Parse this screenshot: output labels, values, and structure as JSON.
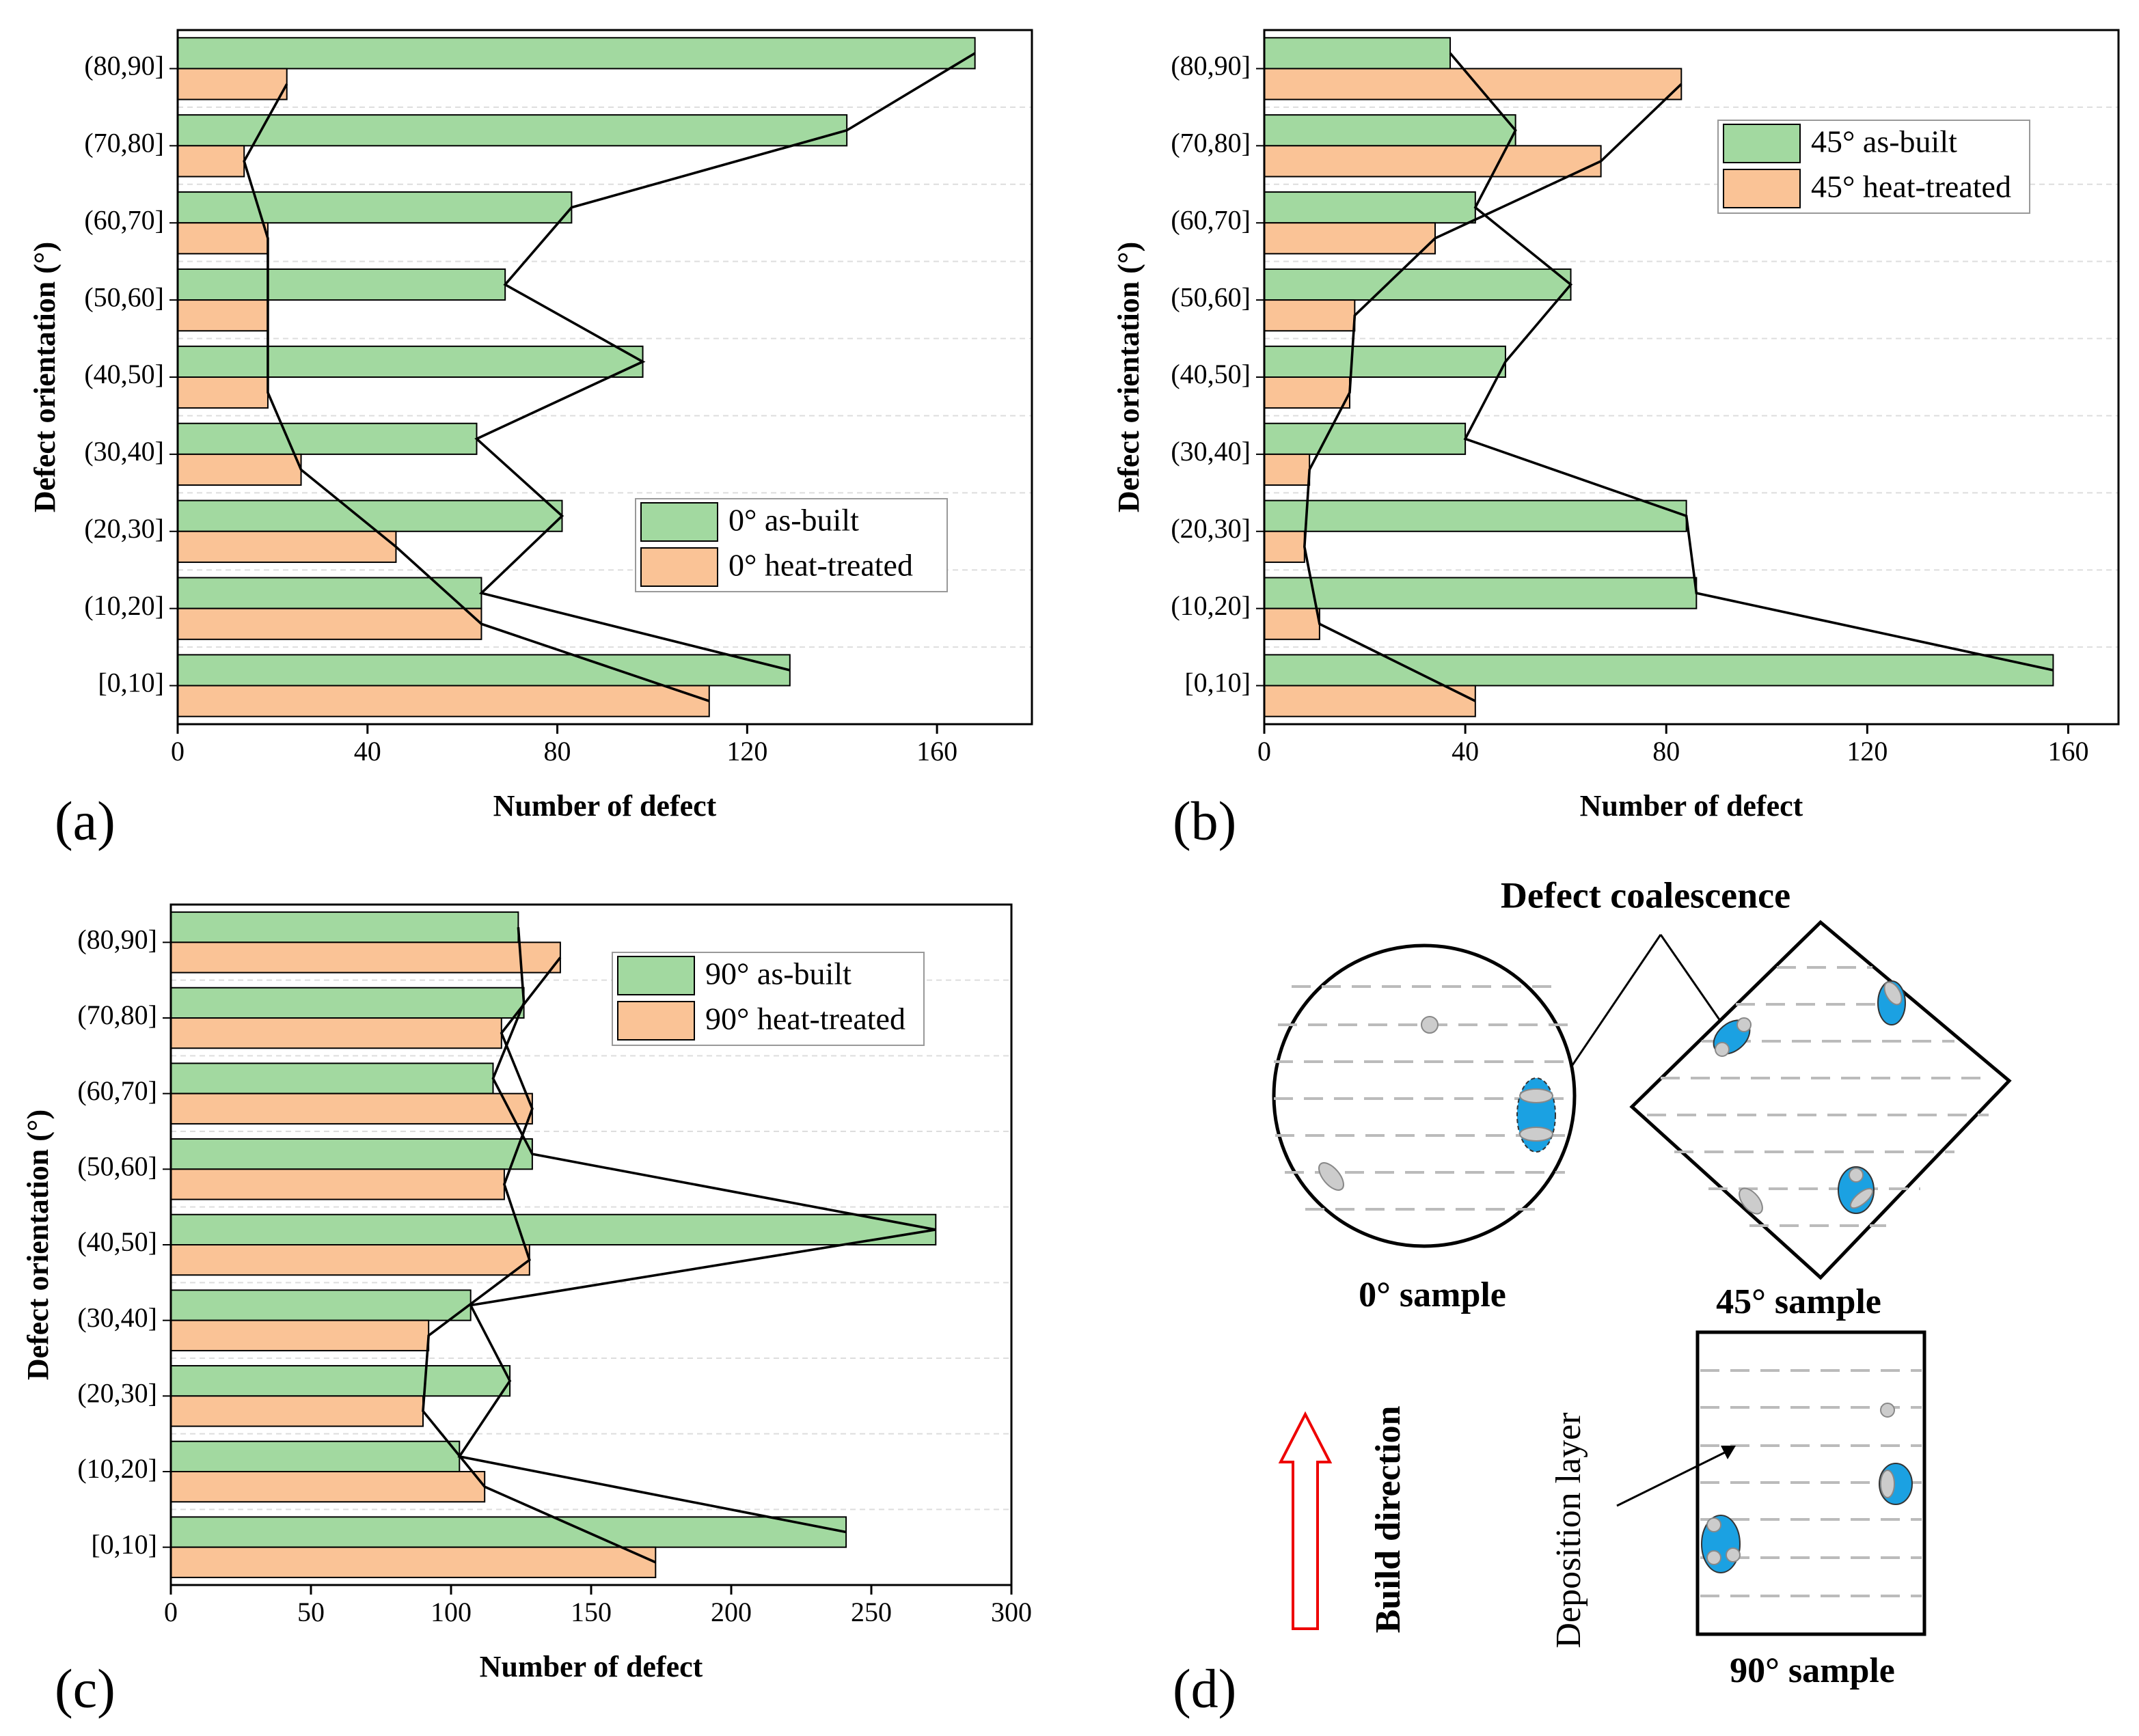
{
  "chart_data": [
    {
      "type": "bar",
      "orientation": "horizontal",
      "panel_label": "(a)",
      "xlabel": "Number of defect",
      "ylabel": "Defect orientation (°)",
      "categories": [
        "[0,10]",
        "(10,20]",
        "(20,30]",
        "(30,40]",
        "(40,50]",
        "(50,60]",
        "(60,70]",
        "(70,80]",
        "(80,90]"
      ],
      "series": [
        {
          "name": "0° as-built",
          "color": "#a2d9a0",
          "values": [
            129,
            64,
            81,
            63,
            98,
            69,
            83,
            141,
            168
          ]
        },
        {
          "name": "0° heat-treated",
          "color": "#fac396",
          "values": [
            112,
            64,
            46,
            26,
            19,
            19,
            19,
            14,
            23
          ]
        }
      ],
      "xlim": [
        0,
        180
      ],
      "xticks": [
        0,
        40,
        80,
        120,
        160
      ],
      "legend": "lower right",
      "connect_bar_ends": true
    },
    {
      "type": "bar",
      "orientation": "horizontal",
      "panel_label": "(b)",
      "xlabel": "Number of defect",
      "ylabel": "Defect orientation (°)",
      "categories": [
        "[0,10]",
        "(10,20]",
        "(20,30]",
        "(30,40]",
        "(40,50]",
        "(50,60]",
        "(60,70]",
        "(70,80]",
        "(80,90]"
      ],
      "series": [
        {
          "name": "45° as-built",
          "color": "#a2d9a0",
          "values": [
            157,
            86,
            84,
            40,
            48,
            61,
            42,
            50,
            37
          ]
        },
        {
          "name": "45° heat-treated",
          "color": "#fac396",
          "values": [
            42,
            11,
            8,
            9,
            17,
            18,
            34,
            67,
            83
          ]
        }
      ],
      "xlim": [
        0,
        170
      ],
      "xticks": [
        0,
        40,
        80,
        120,
        160
      ],
      "legend": "upper right",
      "connect_bar_ends": true
    },
    {
      "type": "bar",
      "orientation": "horizontal",
      "panel_label": "(c)",
      "xlabel": "Number of defect",
      "ylabel": "Defect orientation (°)",
      "categories": [
        "[0,10]",
        "(10,20]",
        "(20,30]",
        "(30,40]",
        "(40,50]",
        "(50,60]",
        "(60,70]",
        "(70,80]",
        "(80,90]"
      ],
      "series": [
        {
          "name": "90° as-built",
          "color": "#a2d9a0",
          "values": [
            241,
            103,
            121,
            107,
            273,
            129,
            115,
            126,
            124
          ]
        },
        {
          "name": "90° heat-treated",
          "color": "#fac396",
          "values": [
            173,
            112,
            90,
            92,
            128,
            119,
            129,
            118,
            139
          ]
        }
      ],
      "xlim": [
        0,
        300
      ],
      "xticks": [
        0,
        50,
        100,
        150,
        200,
        250,
        300
      ],
      "legend": "upper right",
      "connect_bar_ends": true
    }
  ],
  "diagram": {
    "panel_label": "(d)",
    "title": "Defect coalescence",
    "sample_0": "0° sample",
    "sample_45": "45° sample",
    "sample_90": "90° sample",
    "build_direction": "Build direction",
    "deposition_layer": "Deposition layer"
  }
}
